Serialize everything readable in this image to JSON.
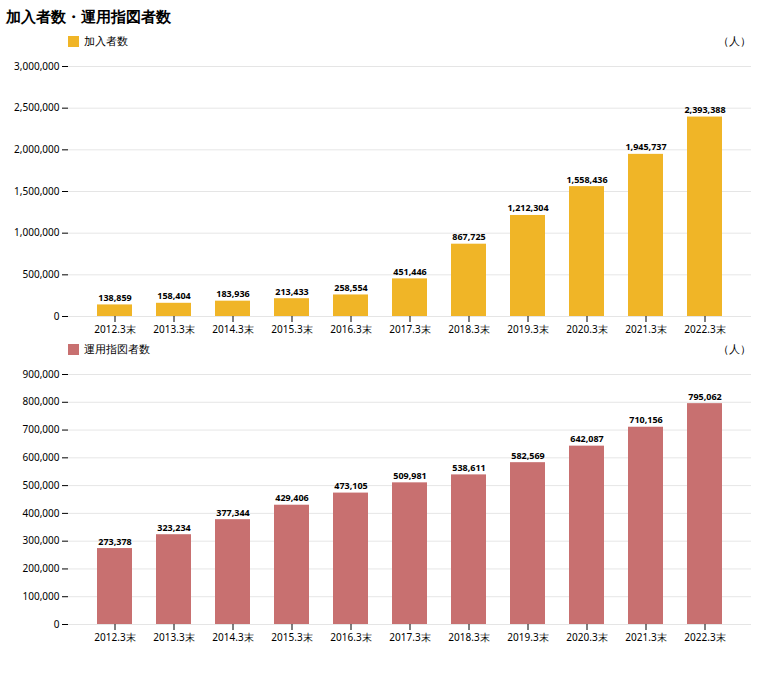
{
  "chart_data": [
    {
      "type": "bar",
      "title": "加入者数・運用指図者数",
      "categories": [
        "2012.3末",
        "2013.3末",
        "2014.3末",
        "2015.3末",
        "2016.3末",
        "2017.3末",
        "2018.3末",
        "2019.3末",
        "2020.3末",
        "2021.3末",
        "2022.3末"
      ],
      "series": [
        {
          "name": "加入者数",
          "color": "#F0B527",
          "values": [
            138859,
            158404,
            183936,
            213433,
            258554,
            451446,
            867725,
            1212304,
            1558436,
            1945737,
            2393388
          ],
          "value_labels": [
            "138,859",
            "158,404",
            "183,936",
            "213,433",
            "258,554",
            "451,446",
            "867,725",
            "1,212,304",
            "1,558,436",
            "1,945,737",
            "2,393,388"
          ]
        }
      ],
      "ylim": [
        0,
        3000000
      ],
      "yticks": [
        0,
        {
          "value": 500000,
          "label": "500,000"
        },
        {
          "value": 1000000,
          "label": "1,000,000"
        },
        {
          "value": 1500000,
          "label": "1,500,000"
        },
        {
          "value": 2000000,
          "label": "2,000,000"
        },
        {
          "value": 2500000,
          "label": "2,500,000"
        },
        {
          "value": 3000000,
          "label": "3,000,000"
        }
      ],
      "annotation": "（人）",
      "grid": true,
      "legend": "upper left",
      "data_labels": true
    },
    {
      "type": "bar",
      "categories": [
        "2012.3末",
        "2013.3末",
        "2014.3末",
        "2015.3末",
        "2016.3末",
        "2017.3末",
        "2018.3末",
        "2019.3末",
        "2020.3末",
        "2021.3末",
        "2022.3末"
      ],
      "series": [
        {
          "name": "運用指図者数",
          "color": "#C87070",
          "values": [
            273378,
            323234,
            377344,
            429406,
            473105,
            509981,
            538611,
            582569,
            642087,
            710156,
            795062
          ],
          "value_labels": [
            "273,378",
            "323,234",
            "377,344",
            "429,406",
            "473,105",
            "509,981",
            "538,611",
            "582,569",
            "642,087",
            "710,156",
            "795,062"
          ]
        }
      ],
      "ylim": [
        0,
        900000
      ],
      "yticks": [
        0,
        {
          "value": 100000,
          "label": "100,000"
        },
        {
          "value": 200000,
          "label": "200,000"
        },
        {
          "value": 300000,
          "label": "300,000"
        },
        {
          "value": 400000,
          "label": "400,000"
        },
        {
          "value": 500000,
          "label": "500,000"
        },
        {
          "value": 600000,
          "label": "600,000"
        },
        {
          "value": 700000,
          "label": "700,000"
        },
        {
          "value": 800000,
          "label": "800,000"
        },
        {
          "value": 900000,
          "label": "900,000"
        }
      ],
      "annotation": "（人）",
      "grid": true,
      "legend": "upper left",
      "data_labels": true
    }
  ]
}
